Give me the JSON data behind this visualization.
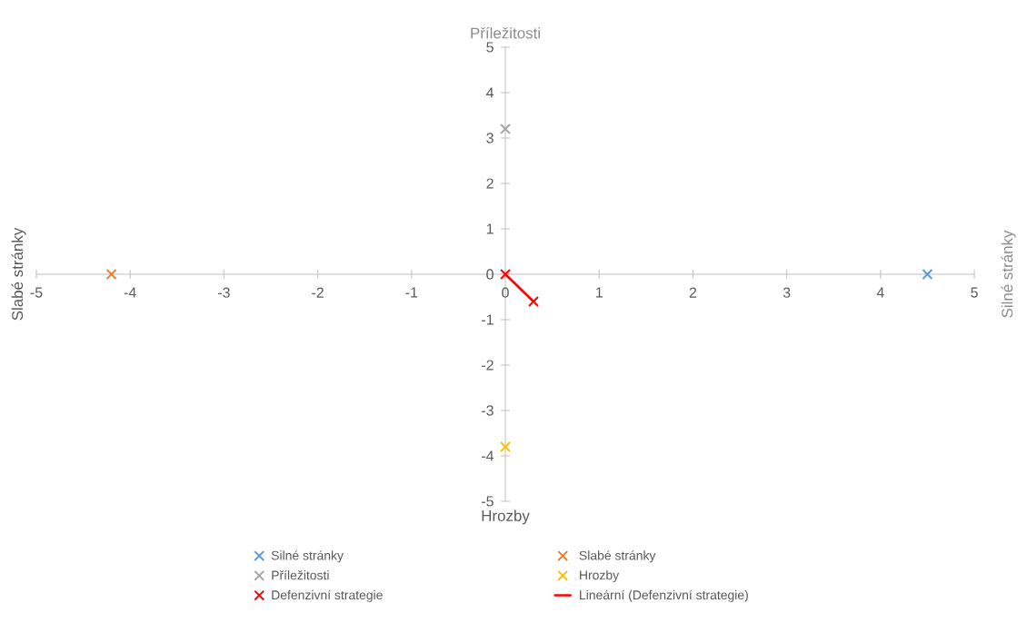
{
  "chart_data": {
    "type": "scatter",
    "annotations": [
      "Příležitosti",
      "Hrozby",
      "Slabé stránky",
      "Silné stránky"
    ],
    "series": [
      {
        "name": "Silné stránky",
        "color": "#5b9bd5",
        "x": [
          4.5
        ],
        "values": [
          0
        ]
      },
      {
        "name": "Slabé stránky",
        "color": "#ed7d31",
        "x": [
          -4.2
        ],
        "values": [
          0
        ]
      },
      {
        "name": "Příležitosti",
        "color": "#a5a5a5",
        "x": [
          0
        ],
        "values": [
          3.2
        ]
      },
      {
        "name": "Hrozby",
        "color": "#ffc000",
        "x": [
          0
        ],
        "values": [
          -3.8
        ]
      },
      {
        "name": "Defenzivní strategie",
        "color": "#ff0000",
        "x": [
          0,
          0.3
        ],
        "values": [
          0,
          -0.6
        ]
      },
      {
        "name": "Lineární (Defenzivní strategie)",
        "type": "line",
        "color": "#ff0000",
        "x": [
          0,
          0.3
        ],
        "values": [
          0,
          -0.6
        ],
        "marker": "none",
        "line_style": "solid"
      }
    ],
    "xlim": [
      -5,
      5
    ],
    "ylim": [
      -5,
      5
    ],
    "xticks": [
      -5,
      -4,
      -3,
      -2,
      -1,
      0,
      1,
      2,
      3,
      4,
      5
    ],
    "yticks": [
      -5,
      -4,
      -3,
      -2,
      -1,
      0,
      1,
      2,
      3,
      4,
      5
    ],
    "grid": false,
    "legend": "bottom",
    "marker": "cross"
  }
}
